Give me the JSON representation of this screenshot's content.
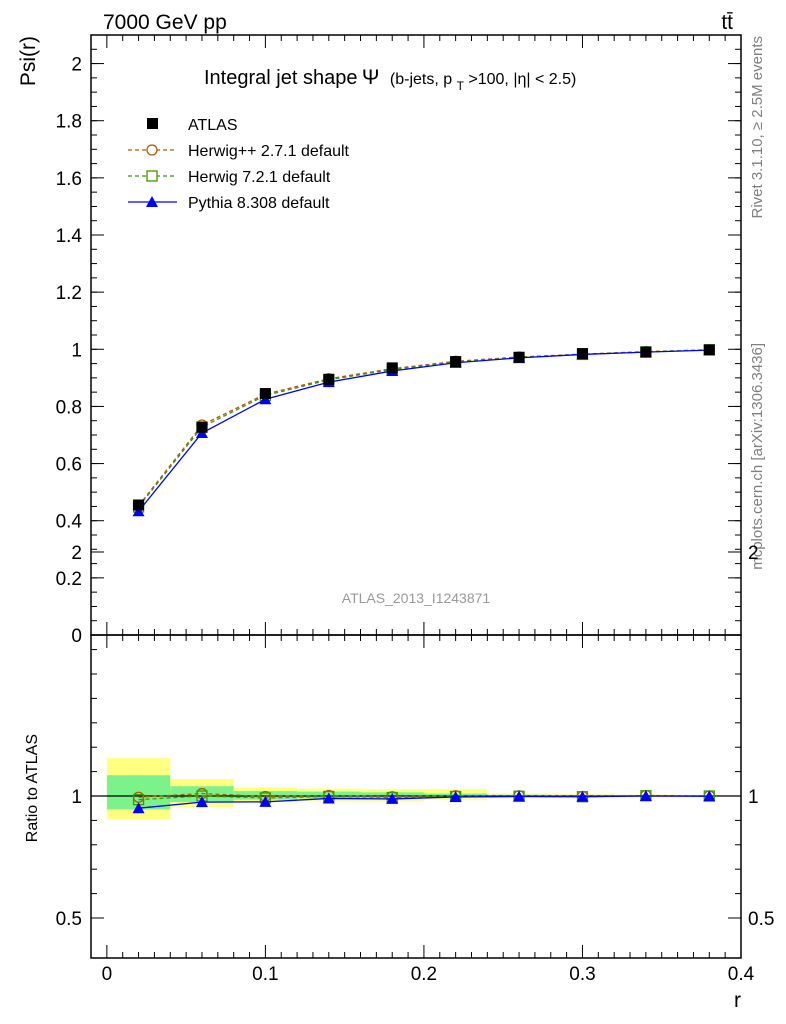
{
  "header": {
    "energy": "7000 GeV pp",
    "process": "tt̄"
  },
  "side": {
    "rivet": "Rivet 3.1.10, ≥ 2.5M events",
    "mcplots": "mcplots.cern.ch [arXiv:1306.3436]"
  },
  "watermark": "ATLAS_2013_I1243871",
  "title": {
    "main": "Integral jet shape",
    "symbol": "Ψ",
    "cut_pre": "(b-jets, p",
    "cut_sub": "T",
    "cut_post": ">100, |η| < 2.5)"
  },
  "colors": {
    "atlas": "#000000",
    "herwigpp": "#b35900",
    "herwig7": "#3c9a00",
    "pythia": "#0000ff",
    "band_stat": "#7cf28a",
    "band_total": "#ffff80"
  },
  "legend": {
    "position": "top-left",
    "entries": [
      {
        "label": "ATLAS",
        "marker": "filled-square"
      },
      {
        "label": "Herwig++ 2.7.1 default",
        "marker": "open-circle"
      },
      {
        "label": "Herwig 7.2.1 default",
        "marker": "open-square"
      },
      {
        "label": "Pythia 8.308 default",
        "marker": "filled-triangle"
      }
    ]
  },
  "chart_data": [
    {
      "type": "line",
      "panel": "main",
      "ylabel": "Psi(r)",
      "xlim": [
        -0.01,
        0.4
      ],
      "ylim": [
        0,
        2.1
      ],
      "yticks": [
        0.2,
        0.4,
        0.6,
        0.8,
        1,
        1.2,
        1.4,
        1.6,
        1.8,
        2
      ],
      "ytick_labels": [
        "0.2",
        "0.4",
        "0.6",
        "0.8",
        "1",
        "1.2",
        "1.4",
        "1.6",
        "1.8",
        "2"
      ],
      "partial_bottom_tick_label": "0",
      "x": [
        0.02,
        0.06,
        0.1,
        0.14,
        0.18,
        0.22,
        0.26,
        0.3,
        0.34,
        0.38
      ],
      "series": [
        {
          "name": "ATLAS",
          "values": [
            0.455,
            0.727,
            0.845,
            0.895,
            0.935,
            0.957,
            0.972,
            0.985,
            0.99,
            0.998
          ]
        },
        {
          "name": "Herwig++ 2.7.1 default",
          "values": [
            0.452,
            0.735,
            0.843,
            0.897,
            0.932,
            0.958,
            0.973,
            0.983,
            0.992,
            0.998
          ]
        },
        {
          "name": "Herwig 7.2.1 default",
          "values": [
            0.448,
            0.728,
            0.838,
            0.893,
            0.929,
            0.955,
            0.971,
            0.982,
            0.991,
            0.998
          ]
        },
        {
          "name": "Pythia 8.308 default",
          "values": [
            0.433,
            0.707,
            0.825,
            0.885,
            0.924,
            0.953,
            0.97,
            0.982,
            0.99,
            0.997
          ]
        }
      ]
    },
    {
      "type": "line",
      "panel": "ratio",
      "ylabel": "Ratio to ATLAS",
      "xlabel": "r",
      "xlim": [
        -0.01,
        0.4
      ],
      "ylim": [
        0.33,
        2.3
      ],
      "yticks": [
        0.5,
        1,
        2
      ],
      "ytick_labels": [
        "0.5",
        "1",
        "2"
      ],
      "xticks": [
        0,
        0.1,
        0.2,
        0.3,
        0.4
      ],
      "xtick_labels": [
        "0",
        "0.1",
        "0.2",
        "0.3",
        "0.4"
      ],
      "x": [
        0.02,
        0.06,
        0.1,
        0.14,
        0.18,
        0.22,
        0.26,
        0.3,
        0.34,
        0.38
      ],
      "bands": {
        "edges": [
          0.0,
          0.04,
          0.08,
          0.12,
          0.16,
          0.2,
          0.24,
          0.28,
          0.32,
          0.36,
          0.4
        ],
        "stat_low": [
          0.945,
          0.975,
          0.985,
          0.99,
          0.99,
          0.995,
          0.997,
          0.998,
          0.998,
          0.999
        ],
        "stat_high": [
          1.085,
          1.04,
          1.02,
          1.018,
          1.015,
          1.01,
          1.005,
          1.004,
          1.003,
          1.002
        ],
        "total_low": [
          0.905,
          0.955,
          0.975,
          0.98,
          0.98,
          0.985,
          0.992,
          0.995,
          0.996,
          0.998
        ],
        "total_high": [
          1.155,
          1.07,
          1.035,
          1.03,
          1.028,
          1.028,
          1.01,
          1.008,
          1.006,
          1.004
        ]
      },
      "series": [
        {
          "name": "Herwig++ 2.7.1 default",
          "values": [
            0.995,
            1.01,
            0.998,
            1.002,
            0.997,
            1.001,
            1.001,
            0.998,
            1.002,
            1.0
          ]
        },
        {
          "name": "Herwig 7.2.1 default",
          "values": [
            0.985,
            1.0,
            0.992,
            0.998,
            0.994,
            0.998,
            0.999,
            0.997,
            1.001,
            1.0
          ]
        },
        {
          "name": "Pythia 8.308 default",
          "values": [
            0.95,
            0.975,
            0.976,
            0.99,
            0.988,
            0.996,
            0.998,
            0.997,
            1.0,
            0.999
          ]
        }
      ]
    }
  ]
}
